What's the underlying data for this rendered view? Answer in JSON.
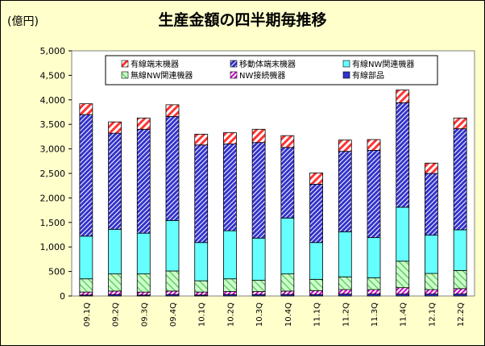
{
  "chart_data": {
    "type": "bar",
    "stacked": true,
    "title": "生産金額の四半期毎推移",
    "ylabel": "(億円)",
    "xlabel": "",
    "ylim": [
      0,
      5000
    ],
    "yticks": [
      "0",
      "500",
      "1,000",
      "1,500",
      "2,000",
      "2,500",
      "3,000",
      "3,500",
      "4,000",
      "4,500",
      "5,000"
    ],
    "grid": false,
    "legend": "top-inside",
    "categories": [
      "09.1Q",
      "09.2Q",
      "09.3Q",
      "09.4Q",
      "10.1Q",
      "10.2Q",
      "10.3Q",
      "10.4Q",
      "11.1Q",
      "11.2Q",
      "11.3Q",
      "11.4Q",
      "12.1Q",
      "12.2Q"
    ],
    "series": [
      {
        "name": "有線部品",
        "color": "#3333cc",
        "pattern": "solid",
        "values": [
          20,
          30,
          20,
          30,
          20,
          30,
          30,
          30,
          30,
          40,
          40,
          40,
          40,
          40
        ]
      },
      {
        "name": "NW接続機器",
        "color": "#cc00cc",
        "pattern": "hatch-light",
        "values": [
          60,
          70,
          60,
          70,
          60,
          60,
          60,
          70,
          80,
          90,
          90,
          130,
          90,
          110
        ]
      },
      {
        "name": "無線NW関連機器",
        "color": "#66cc66",
        "pattern": "hatch",
        "values": [
          270,
          350,
          370,
          410,
          230,
          260,
          230,
          350,
          230,
          260,
          240,
          540,
          330,
          370
        ]
      },
      {
        "name": "有線NW関連機器",
        "color": "#66ffff",
        "pattern": "solid",
        "values": [
          870,
          910,
          830,
          1030,
          780,
          980,
          860,
          1140,
          750,
          920,
          820,
          1100,
          780,
          830
        ]
      },
      {
        "name": "移動体端末機器",
        "color": "#3333cc",
        "pattern": "hatch-dense",
        "values": [
          2480,
          1960,
          2120,
          2120,
          1990,
          1770,
          1950,
          1440,
          1190,
          1640,
          1780,
          2130,
          1260,
          2060
        ]
      },
      {
        "name": "有線端末機器",
        "color": "#ff3333",
        "pattern": "hatch-red",
        "values": [
          220,
          230,
          230,
          240,
          220,
          230,
          270,
          240,
          230,
          230,
          220,
          260,
          210,
          220
        ]
      }
    ]
  },
  "legend_rows": [
    [
      "有線端末機器",
      "移動体端末機器",
      "有線NW関連機器"
    ],
    [
      "無線NW関連機器",
      "NW接続機器",
      "有線部品"
    ]
  ]
}
